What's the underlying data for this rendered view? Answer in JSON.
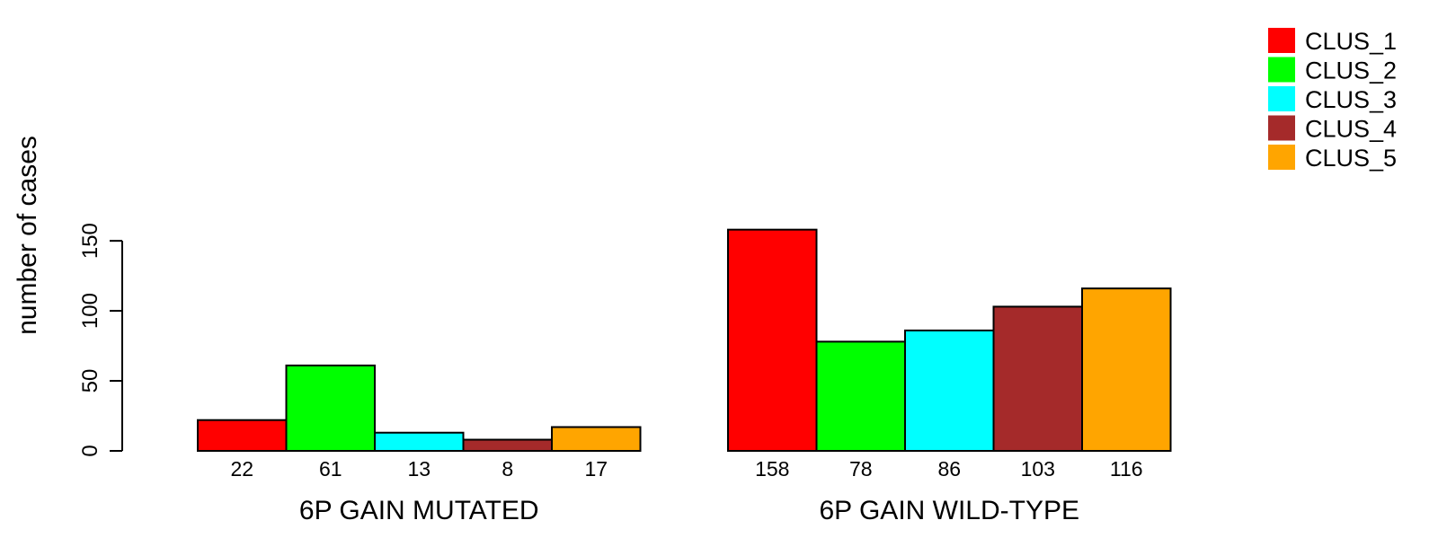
{
  "chart_data": {
    "type": "bar",
    "ylabel": "number of cases",
    "ylim": [
      0,
      158
    ],
    "yticks": [
      0,
      50,
      100,
      150
    ],
    "groups": [
      {
        "label": "6P GAIN MUTATED",
        "values": [
          22,
          61,
          13,
          8,
          17
        ]
      },
      {
        "label": "6P GAIN WILD-TYPE",
        "values": [
          158,
          78,
          86,
          103,
          116
        ]
      }
    ],
    "series": [
      {
        "name": "CLUS_1",
        "color": "#ff0000"
      },
      {
        "name": "CLUS_2",
        "color": "#00ff00"
      },
      {
        "name": "CLUS_3",
        "color": "#00ffff"
      },
      {
        "name": "CLUS_4",
        "color": "#a52a2a"
      },
      {
        "name": "CLUS_5",
        "color": "#ffa500"
      }
    ],
    "legend": "top-right",
    "grid": false
  }
}
